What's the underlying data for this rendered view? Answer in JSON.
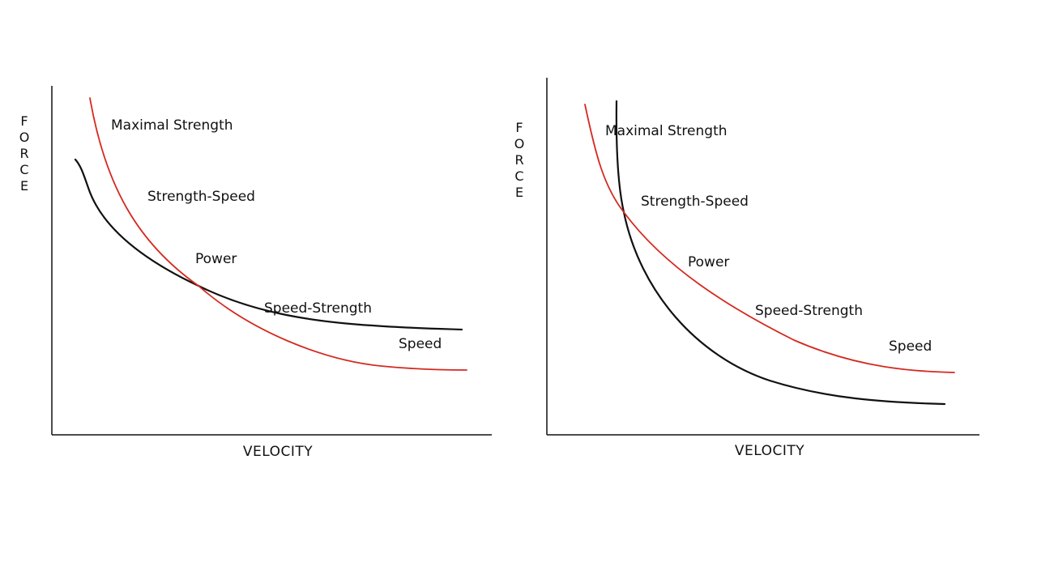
{
  "diagrams": [
    {
      "y_axis_label": "FORCE",
      "x_axis_label": "VELOCITY",
      "zone_labels": {
        "maximal_strength": "Maximal Strength",
        "strength_speed": "Strength-Speed",
        "power": "Power",
        "speed_strength": "Speed-Strength",
        "speed": "Speed"
      },
      "curve_colors": {
        "black": "#111111",
        "red": "#d42a20"
      }
    },
    {
      "y_axis_label": "FORCE",
      "x_axis_label": "VELOCITY",
      "zone_labels": {
        "maximal_strength": "Maximal Strength",
        "strength_speed": "Strength-Speed",
        "power": "Power",
        "speed_strength": "Speed-Strength",
        "speed": "Speed"
      },
      "curve_colors": {
        "black": "#111111",
        "red": "#d42a20"
      }
    }
  ]
}
